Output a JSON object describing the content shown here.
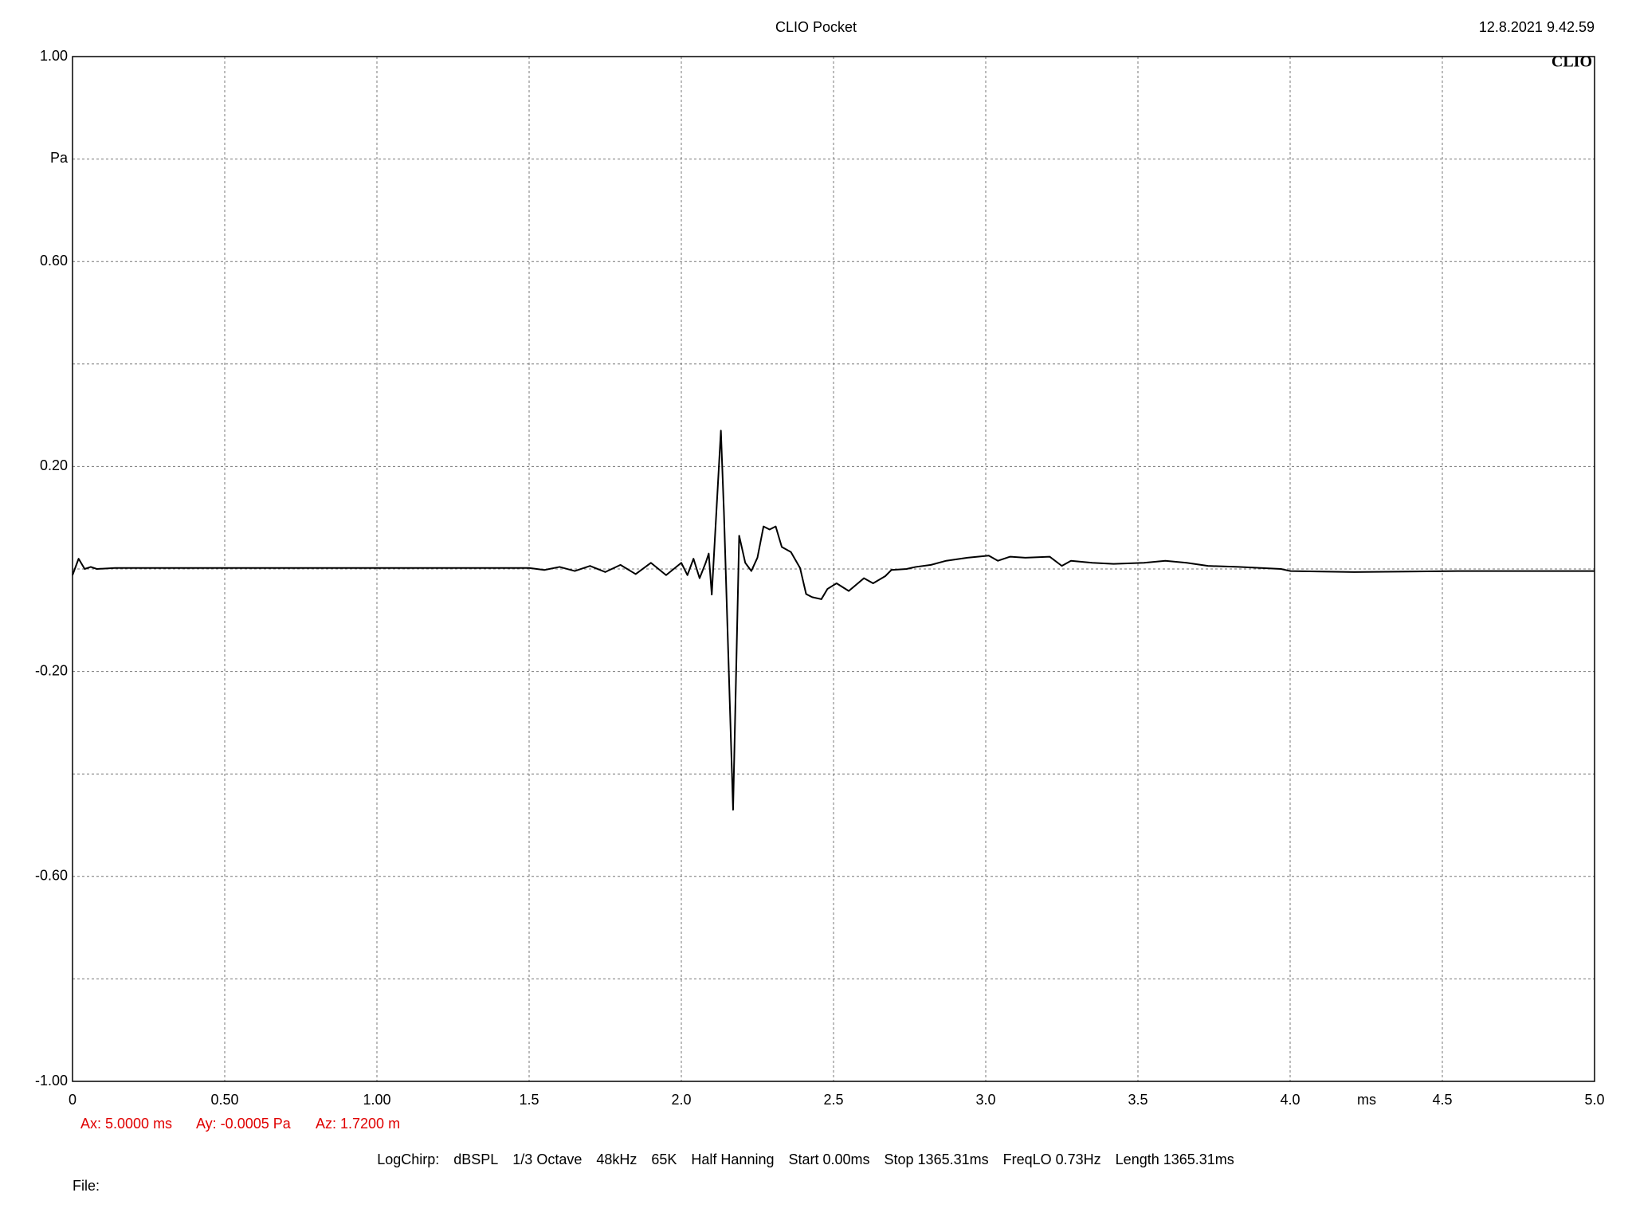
{
  "chart_data": {
    "type": "line",
    "title": "CLIO Pocket",
    "timestamp": "12.8.2021 9.42.59",
    "logo": "CLIO",
    "y_label": "Pa",
    "x_label": "ms",
    "xlim": [
      0,
      5
    ],
    "ylim": [
      -1,
      1
    ],
    "xticks": [
      0,
      {
        "value": 0.5,
        "label": "0.50"
      },
      {
        "value": 1,
        "label": "1.00"
      },
      1.5,
      {
        "value": 2,
        "label": "2.0"
      },
      2.5,
      {
        "value": 3,
        "label": "3.0"
      },
      3.5,
      {
        "value": 4,
        "label": "4.0"
      },
      4.5,
      {
        "value": 5,
        "label": "5.0"
      }
    ],
    "yticks": [
      {
        "value": 1,
        "label": "1.00"
      },
      {
        "value": 0.6,
        "label": "0.60"
      },
      {
        "value": 0.2,
        "label": "0.20"
      },
      {
        "value": -0.2,
        "label": "-0.20"
      },
      {
        "value": -0.6,
        "label": "-0.60"
      },
      {
        "value": -1,
        "label": "-1.00"
      }
    ],
    "yminor": [
      0.8,
      0.4,
      0,
      -0.4,
      -0.8
    ],
    "grid": true,
    "series": [
      {
        "color": "#000000",
        "x": [
          0,
          0.02,
          0.04,
          0.06,
          0.08,
          0.14,
          1.5,
          1.55,
          1.6,
          1.65,
          1.7,
          1.75,
          1.8,
          1.85,
          1.9,
          1.95,
          2.0,
          2.02,
          2.04,
          2.06,
          2.08,
          2.09,
          2.1,
          2.13,
          2.14,
          2.17,
          2.19,
          2.21,
          2.23,
          2.25,
          2.27,
          2.29,
          2.31,
          2.33,
          2.36,
          2.39,
          2.41,
          2.43,
          2.46,
          2.48,
          2.51,
          2.55,
          2.58,
          2.6,
          2.63,
          2.67,
          2.69,
          2.74,
          2.77,
          2.82,
          2.87,
          2.94,
          3.01,
          3.04,
          3.08,
          3.13,
          3.21,
          3.25,
          3.28,
          3.35,
          3.42,
          3.52,
          3.59,
          3.66,
          3.73,
          3.83,
          3.97,
          4.0,
          4.21,
          4.55,
          5.0
        ],
        "values": [
          -0.012,
          0.02,
          0,
          0.004,
          0,
          0.002,
          0.002,
          -0.002,
          0.004,
          -0.004,
          0.006,
          -0.006,
          0.008,
          -0.01,
          0.012,
          -0.012,
          0.012,
          -0.012,
          0.02,
          -0.018,
          0.012,
          0.03,
          -0.05,
          0.27,
          0.11,
          -0.47,
          0.065,
          0.012,
          -0.004,
          0.022,
          0.083,
          0.077,
          0.083,
          0.043,
          0.033,
          0.002,
          -0.049,
          -0.055,
          -0.059,
          -0.039,
          -0.028,
          -0.043,
          -0.028,
          -0.018,
          -0.028,
          -0.014,
          -0.002,
          0,
          0.004,
          0.008,
          0.016,
          0.022,
          0.026,
          0.016,
          0.024,
          0.022,
          0.024,
          0.006,
          0.016,
          0.012,
          0.01,
          0.012,
          0.016,
          0.012,
          0.006,
          0.004,
          0,
          -0.004,
          -0.006,
          -0.004,
          -0.004
        ]
      }
    ],
    "cursor": [
      "Ax: 5.0000 ms",
      "Ay: -0.0005 Pa",
      "Az: 1.7200 m"
    ],
    "settings": [
      "LogChirp:",
      "dBSPL",
      "1/3 Octave",
      "48kHz",
      "65K",
      "Half Hanning",
      "Start 0.00ms",
      "Stop 1365.31ms",
      "FreqLO 0.73Hz",
      "Length 1365.31ms"
    ],
    "file_label": "File:"
  }
}
